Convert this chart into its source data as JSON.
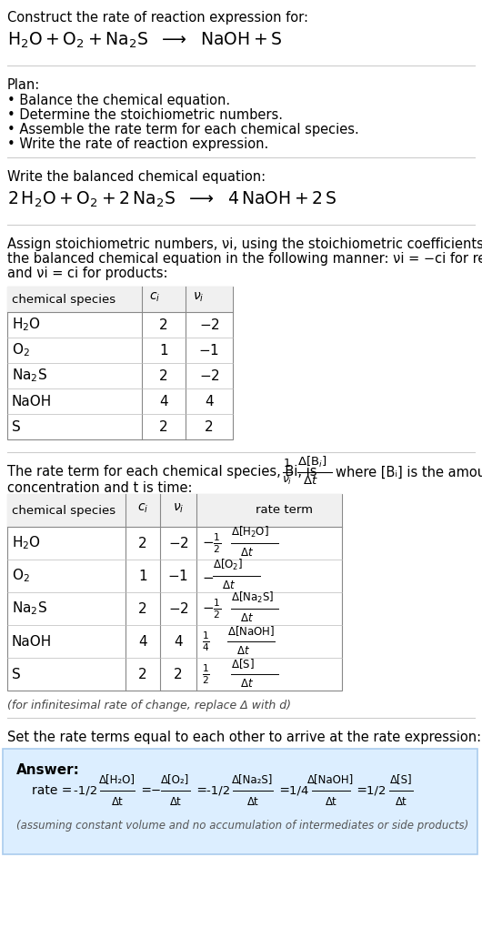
{
  "bg_color": "#ffffff",
  "title_line1": "Construct the rate of reaction expression for:",
  "plan_header": "Plan:",
  "plan_items": [
    "• Balance the chemical equation.",
    "• Determine the stoichiometric numbers.",
    "• Assemble the rate term for each chemical species.",
    "• Write the rate of reaction expression."
  ],
  "balanced_header": "Write the balanced chemical equation:",
  "stoich_intro_lines": [
    "Assign stoichiometric numbers, νi, using the stoichiometric coefficients, ci, from",
    "the balanced chemical equation in the following manner: νi = −ci for reactants",
    "and νi = ci for products:"
  ],
  "rate_intro_line1": "The rate term for each chemical species, Bi, is",
  "rate_intro_line2": "concentration and t is time:",
  "infinitesimal_note": "(for infinitesimal rate of change, replace Δ with d)",
  "set_rate_text": "Set the rate terms equal to each other to arrive at the rate expression:",
  "answer_label": "Answer:",
  "footer_note": "(assuming constant volume and no accumulation of intermediates or side products)",
  "answer_box_color": "#dceeff",
  "answer_box_border": "#aaccee",
  "hline_color": "#cccccc",
  "table_border": "#888888",
  "table_row_sep": "#bbbbbb",
  "header_bg": "#f0f0f0"
}
